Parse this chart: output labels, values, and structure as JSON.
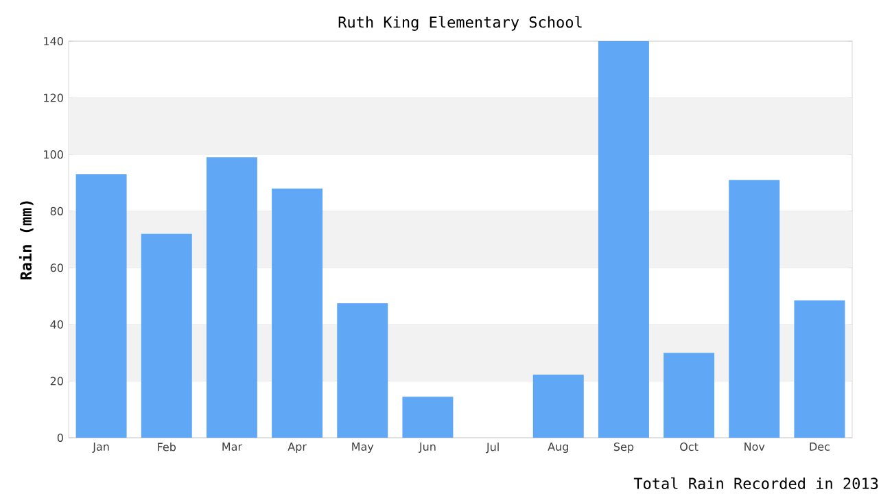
{
  "chart_data": {
    "type": "bar",
    "title": "Ruth King Elementary School",
    "ylabel": "Rain (mm)",
    "categories": [
      "Jan",
      "Feb",
      "Mar",
      "Apr",
      "May",
      "Jun",
      "Jul",
      "Aug",
      "Sep",
      "Oct",
      "Nov",
      "Dec"
    ],
    "values": [
      93,
      72,
      99,
      88,
      47.5,
      14.5,
      0,
      22.3,
      140,
      30,
      91,
      48.5
    ],
    "color": "#60a8f5",
    "ylim": [
      0,
      140
    ],
    "yticks": [
      0,
      20,
      40,
      60,
      80,
      100,
      120,
      140
    ],
    "grid": "y",
    "annotations": [
      "Total Rain Recorded in 2013"
    ]
  }
}
